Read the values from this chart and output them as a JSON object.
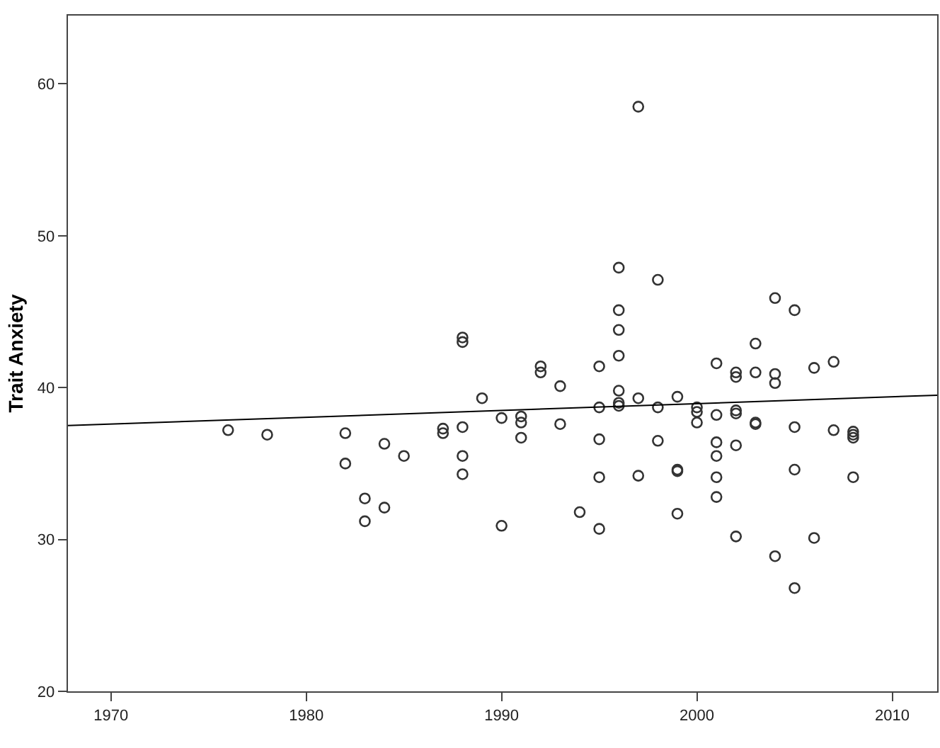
{
  "chart_data": {
    "type": "scatter",
    "ylabel": "Trait Anxiety",
    "xlim": [
      1967.8,
      2012.3
    ],
    "ylim": [
      20,
      64.5
    ],
    "xticks": [
      1970,
      1980,
      1990,
      2000,
      2010
    ],
    "yticks": [
      20,
      30,
      40,
      50,
      60
    ],
    "series": [
      {
        "marker": "circle",
        "color": "#333333",
        "x": [
          1976,
          1978,
          1982,
          1982,
          1983,
          1983,
          1984,
          1984,
          1985,
          1987,
          1987,
          1988,
          1988,
          1988,
          1988,
          1988,
          1989,
          1990,
          1990,
          1991,
          1991,
          1991,
          1992,
          1992,
          1993,
          1993,
          1994,
          1995,
          1995,
          1995,
          1995,
          1995,
          1996,
          1996,
          1996,
          1996,
          1996,
          1996,
          1996,
          1997,
          1997,
          1997,
          1998,
          1998,
          1998,
          1999,
          1999,
          1999,
          1999,
          2000,
          2000,
          2000,
          2001,
          2001,
          2001,
          2001,
          2001,
          2001,
          2002,
          2002,
          2002,
          2002,
          2002,
          2002,
          2003,
          2003,
          2003,
          2003,
          2004,
          2004,
          2004,
          2004,
          2005,
          2005,
          2005,
          2005,
          2006,
          2006,
          2007,
          2007,
          2008,
          2008,
          2008,
          2008
        ],
        "values": [
          37.2,
          36.9,
          37.0,
          35.0,
          32.7,
          31.2,
          36.3,
          32.1,
          35.5,
          37.3,
          37.0,
          43.3,
          43.0,
          37.4,
          35.5,
          34.3,
          39.3,
          38.0,
          30.9,
          38.1,
          37.7,
          36.7,
          41.4,
          41.0,
          40.1,
          37.6,
          31.8,
          41.4,
          38.7,
          36.6,
          34.1,
          30.7,
          47.9,
          45.1,
          43.8,
          42.1,
          39.8,
          39.0,
          38.8,
          58.5,
          39.3,
          34.2,
          47.1,
          38.7,
          36.5,
          39.4,
          34.6,
          34.5,
          31.7,
          38.7,
          38.4,
          37.7,
          41.6,
          38.2,
          36.4,
          35.5,
          34.1,
          32.8,
          41.0,
          40.7,
          38.5,
          38.3,
          36.2,
          30.2,
          42.9,
          41.0,
          37.7,
          37.6,
          45.9,
          40.9,
          40.3,
          28.9,
          45.1,
          37.4,
          34.6,
          26.8,
          41.3,
          30.1,
          41.7,
          37.2,
          37.1,
          36.9,
          36.7,
          34.1
        ]
      },
      {
        "type": "line",
        "color": "#000000",
        "x": [
          1967.8,
          2012.3
        ],
        "values": [
          37.5,
          39.5
        ]
      }
    ]
  }
}
